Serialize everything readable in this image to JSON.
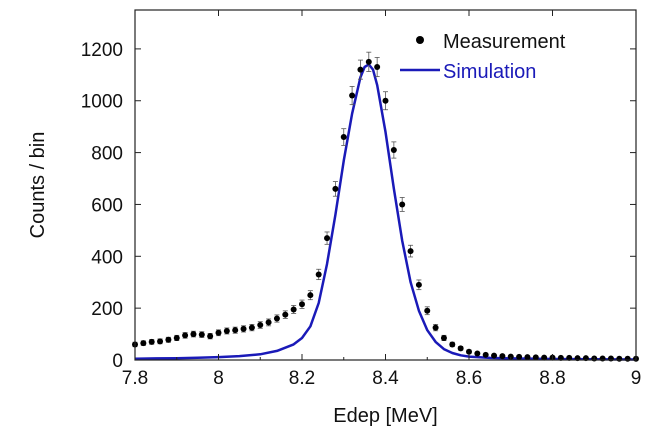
{
  "chart_data": {
    "type": "scatter",
    "xlabel": "Edep [MeV]",
    "ylabel": "Counts / bin",
    "xlim": [
      7.8,
      9.0
    ],
    "ylim": [
      0,
      1350
    ],
    "xticks": [
      "7.8",
      "8",
      "8.2",
      "8.4",
      "8.6",
      "8.8",
      "9"
    ],
    "yticks": [
      "0",
      "200",
      "400",
      "600",
      "800",
      "1000",
      "1200"
    ],
    "grid": false,
    "legend_position": "top-right",
    "series": [
      {
        "name": "Measurement",
        "style": "points-with-errorbars",
        "color": "#000000",
        "x": [
          7.8,
          7.82,
          7.84,
          7.86,
          7.88,
          7.9,
          7.92,
          7.94,
          7.96,
          7.98,
          8.0,
          8.02,
          8.04,
          8.06,
          8.08,
          8.1,
          8.12,
          8.14,
          8.16,
          8.18,
          8.2,
          8.22,
          8.24,
          8.26,
          8.28,
          8.3,
          8.32,
          8.34,
          8.36,
          8.38,
          8.4,
          8.42,
          8.44,
          8.46,
          8.48,
          8.5,
          8.52,
          8.54,
          8.56,
          8.58,
          8.6,
          8.62,
          8.64,
          8.66,
          8.68,
          8.7,
          8.72,
          8.74,
          8.76,
          8.78,
          8.8,
          8.82,
          8.84,
          8.86,
          8.88,
          8.9,
          8.92,
          8.94,
          8.96,
          8.98,
          9.0
        ],
        "y": [
          60,
          65,
          70,
          72,
          78,
          85,
          95,
          100,
          98,
          92,
          105,
          112,
          115,
          120,
          125,
          135,
          145,
          160,
          175,
          195,
          215,
          250,
          330,
          470,
          660,
          860,
          1020,
          1120,
          1150,
          1130,
          1000,
          810,
          600,
          420,
          290,
          190,
          125,
          85,
          60,
          45,
          32,
          25,
          20,
          17,
          15,
          13,
          12,
          11,
          10,
          9,
          9,
          8,
          8,
          7,
          7,
          6,
          6,
          6,
          5,
          5,
          5
        ]
      },
      {
        "name": "Simulation",
        "style": "line",
        "color": "#1a1ab8",
        "x": [
          7.8,
          7.85,
          7.9,
          7.95,
          8.0,
          8.05,
          8.1,
          8.14,
          8.18,
          8.2,
          8.22,
          8.24,
          8.26,
          8.28,
          8.3,
          8.32,
          8.34,
          8.35,
          8.36,
          8.37,
          8.38,
          8.4,
          8.42,
          8.44,
          8.46,
          8.48,
          8.5,
          8.52,
          8.54,
          8.56,
          8.58,
          8.6,
          8.65,
          8.7,
          8.8,
          8.9,
          9.0
        ],
        "y": [
          5,
          6,
          7,
          9,
          11,
          15,
          22,
          35,
          60,
          85,
          130,
          220,
          370,
          560,
          770,
          950,
          1090,
          1130,
          1140,
          1120,
          1060,
          880,
          660,
          460,
          300,
          190,
          115,
          70,
          42,
          27,
          18,
          13,
          8,
          6,
          4,
          3,
          2
        ]
      }
    ]
  }
}
